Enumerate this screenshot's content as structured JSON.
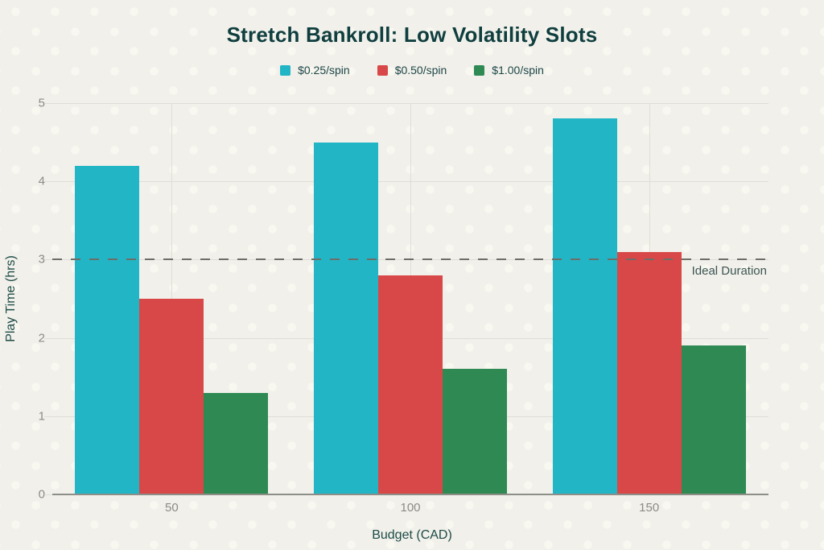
{
  "title": "Stretch Bankroll: Low Volatility Slots",
  "palette": {
    "background": "#f1f0eb",
    "title_text": "#0f3e3e",
    "axis_title_text": "#1d4b45",
    "tick_text": "#8b8b85",
    "gridline": "#deddd5",
    "reference_line": "#6e6e68",
    "series_cyan": "#22b5c6",
    "series_red": "#d94848",
    "series_green": "#2e8a52"
  },
  "chart_data": {
    "type": "bar",
    "title": "Stretch Bankroll: Low Volatility Slots",
    "categories": [
      "50",
      "100",
      "150"
    ],
    "series": [
      {
        "name": "$0.25/spin",
        "color": "#22b5c6",
        "values": [
          4.2,
          4.5,
          4.8
        ]
      },
      {
        "name": "$0.50/spin",
        "color": "#d94848",
        "values": [
          2.5,
          2.8,
          3.1
        ]
      },
      {
        "name": "$1.00/spin",
        "color": "#2e8a52",
        "values": [
          1.3,
          1.6,
          1.9
        ]
      }
    ],
    "xlabel": "Budget (CAD)",
    "ylabel": "Play Time (hrs)",
    "ylim": [
      0,
      5
    ],
    "yticks": [
      0,
      1,
      2,
      3,
      4,
      5
    ],
    "grid": true,
    "legend_position": "top-center",
    "reference_line": {
      "value": 3,
      "label": "Ideal Duration",
      "style": "dashed"
    }
  }
}
